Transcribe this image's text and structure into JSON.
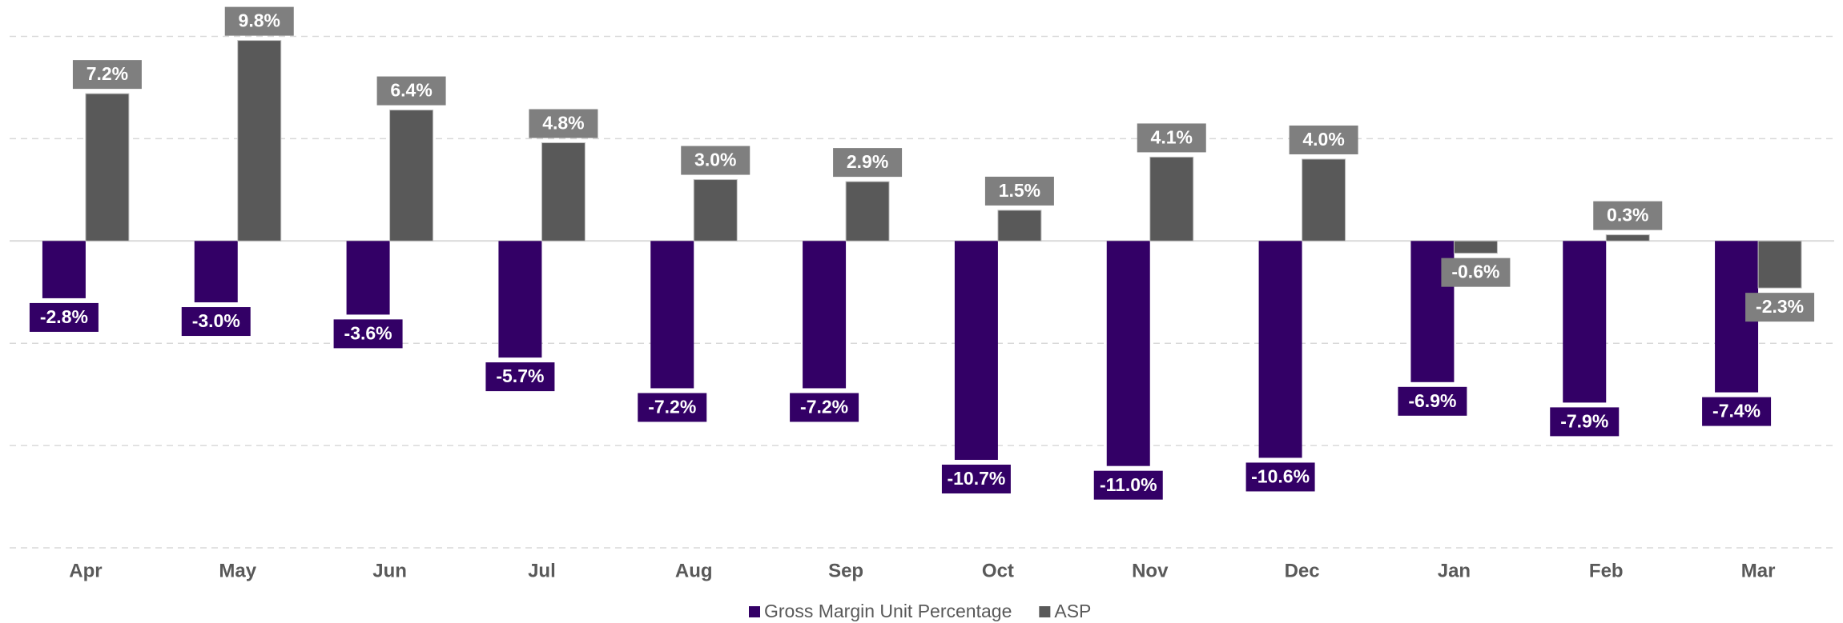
{
  "chart_data": {
    "type": "bar",
    "categories": [
      "Apr",
      "May",
      "Jun",
      "Jul",
      "Aug",
      "Sep",
      "Oct",
      "Nov",
      "Dec",
      "Jan",
      "Feb",
      "Mar"
    ],
    "series": [
      {
        "name": "Gross Margin Unit Percentage",
        "color": "#330066",
        "values": [
          -2.8,
          -3.0,
          -3.6,
          -5.7,
          -7.2,
          -7.2,
          -10.7,
          -11.0,
          -10.6,
          -6.9,
          -7.9,
          -7.4
        ],
        "value_labels": [
          "-2.8%",
          "-3.0%",
          "-3.6%",
          "-5.7%",
          "-7.2%",
          "-7.2%",
          "-10.7%",
          "-11.0%",
          "-10.6%",
          "-6.9%",
          "-7.9%",
          "-7.4%"
        ]
      },
      {
        "name": "ASP",
        "color": "#595959",
        "values": [
          7.2,
          9.8,
          6.4,
          4.8,
          3.0,
          2.9,
          1.5,
          4.1,
          4.0,
          -0.6,
          0.3,
          -2.3
        ],
        "value_labels": [
          "7.2%",
          "9.8%",
          "6.4%",
          "4.8%",
          "3.0%",
          "2.9%",
          "1.5%",
          "4.1%",
          "4.0%",
          "-0.6%",
          "0.3%",
          "-2.3%"
        ]
      }
    ],
    "ylim": [
      -15,
      10
    ],
    "yticks": [
      -15,
      -10,
      -5,
      0,
      5,
      10
    ],
    "grid": true,
    "legend": "bottom"
  }
}
